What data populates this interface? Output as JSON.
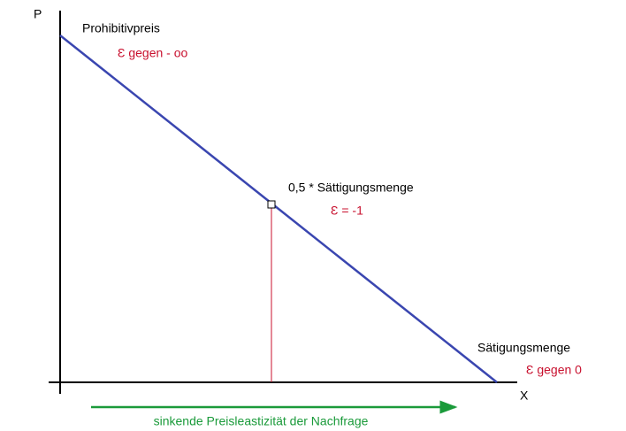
{
  "axes": {
    "y_label": "P",
    "x_label": "X"
  },
  "points": [
    {
      "label": "Prohibitivpreis",
      "elasticity": "Ɛ gegen - oo"
    },
    {
      "label": "0,5 * Sättigungsmenge",
      "elasticity": "Ɛ = -1"
    },
    {
      "label": "Sätigungsmenge",
      "elasticity": "Ɛ gegen 0"
    }
  ],
  "arrow_label": "sinkende Preisleastizität der Nachfrage"
}
